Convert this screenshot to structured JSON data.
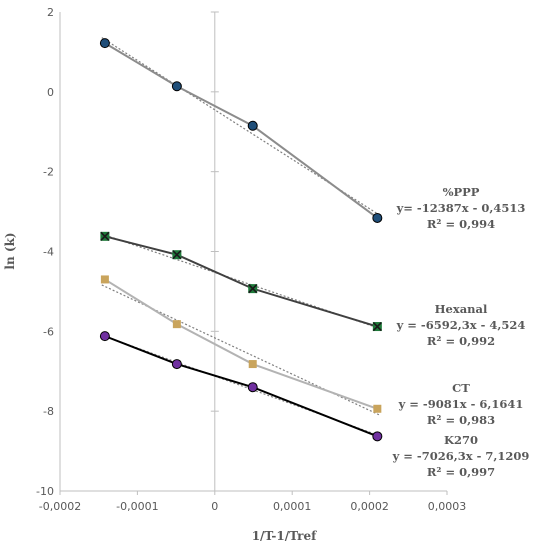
{
  "chart_data": {
    "type": "scatter",
    "xlabel": "1/T-1/Tref",
    "ylabel": "ln (k)",
    "xlim": [
      -0.0002,
      0.0003
    ],
    "ylim": [
      -10,
      2
    ],
    "xticks": [
      -0.0002,
      -0.0001,
      0,
      0.0001,
      0.0002,
      0.0003
    ],
    "xtick_labels": [
      "-0,0002",
      "-0,0001",
      "0",
      "0,0001",
      "0,0002",
      "0,0003"
    ],
    "yticks": [
      2,
      0,
      -2,
      -4,
      -6,
      -8,
      -10
    ],
    "ytick_labels": [
      "2",
      "0",
      "-2",
      "-4",
      "-6",
      "-8",
      "-10"
    ],
    "grid": false,
    "legend": "none",
    "series": [
      {
        "name": "%PPP",
        "x": [
          -0.000142,
          -4.9e-05,
          4.9e-05,
          0.00021
        ],
        "y": [
          1.22,
          0.14,
          -0.85,
          -3.16
        ],
        "marker": "circle",
        "marker_color": "#1f4e79",
        "line_color": "#8c8c8c",
        "trendline": {
          "slope": -12387,
          "intercept": -0.4513
        },
        "annotation": [
          "%PPP",
          "y= -12387x - 0,4513",
          "R² = 0,994"
        ]
      },
      {
        "name": "Hexanal",
        "x": [
          -0.000142,
          -4.9e-05,
          4.9e-05,
          0.00021
        ],
        "y": [
          -3.62,
          -4.08,
          -4.93,
          -5.88
        ],
        "marker": "x-square",
        "marker_color": "#1f7a3a",
        "line_color": "#404040",
        "trendline": {
          "slope": -6592.3,
          "intercept": -4.524
        },
        "annotation": [
          "Hexanal",
          "y = -6592,3x - 4,524",
          "R² = 0,992"
        ]
      },
      {
        "name": "CT",
        "x": [
          -0.000142,
          -4.9e-05,
          4.9e-05,
          0.00021
        ],
        "y": [
          -4.7,
          -5.82,
          -6.82,
          -7.94
        ],
        "marker": "square",
        "marker_color": "#c9a45c",
        "line_color": "#b3b3b3",
        "trendline": {
          "slope": -9081,
          "intercept": -6.1641
        },
        "annotation": [
          "CT",
          "y = -9081x - 6,1641",
          "R² = 0,983"
        ]
      },
      {
        "name": "K270",
        "x": [
          -0.000142,
          -4.9e-05,
          4.9e-05,
          0.00021
        ],
        "y": [
          -6.12,
          -6.82,
          -7.4,
          -8.63
        ],
        "marker": "circle",
        "marker_color": "#7030a0",
        "line_color": "#000000",
        "trendline": {
          "slope": -7026.3,
          "intercept": -7.1209
        },
        "annotation": [
          "K270",
          "y = -7026,3x - 7,1209",
          "R² = 0,997"
        ]
      }
    ]
  }
}
